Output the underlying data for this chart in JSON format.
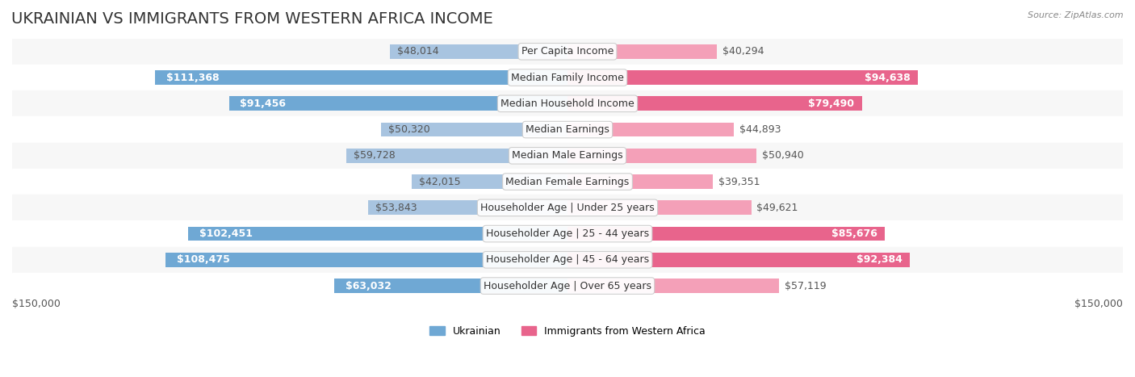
{
  "title": "UKRAINIAN VS IMMIGRANTS FROM WESTERN AFRICA INCOME",
  "source": "Source: ZipAtlas.com",
  "categories": [
    "Per Capita Income",
    "Median Family Income",
    "Median Household Income",
    "Median Earnings",
    "Median Male Earnings",
    "Median Female Earnings",
    "Householder Age | Under 25 years",
    "Householder Age | 25 - 44 years",
    "Householder Age | 45 - 64 years",
    "Householder Age | Over 65 years"
  ],
  "ukrainian_values": [
    48014,
    111368,
    91456,
    50320,
    59728,
    42015,
    53843,
    102451,
    108475,
    63032
  ],
  "western_africa_values": [
    40294,
    94638,
    79490,
    44893,
    50940,
    39351,
    49621,
    85676,
    92384,
    57119
  ],
  "ukrainian_labels": [
    "$48,014",
    "$111,368",
    "$91,456",
    "$50,320",
    "$59,728",
    "$42,015",
    "$53,843",
    "$102,451",
    "$108,475",
    "$63,032"
  ],
  "western_africa_labels": [
    "$40,294",
    "$94,638",
    "$79,490",
    "$44,893",
    "$50,940",
    "$39,351",
    "$49,621",
    "$85,676",
    "$92,384",
    "$57,119"
  ],
  "ukrainian_color": "#a8c4e0",
  "ukrainian_color_dark": "#6fa8d4",
  "western_africa_color": "#f4a0b8",
  "western_africa_color_dark": "#e8648c",
  "bar_bg_color": "#f0f0f0",
  "row_bg_color_1": "#ffffff",
  "row_bg_color_2": "#f7f7f7",
  "max_value": 150000,
  "legend_ukrainian": "Ukrainian",
  "legend_western_africa": "Immigrants from Western Africa",
  "xlabel_left": "$150,000",
  "xlabel_right": "$150,000",
  "title_fontsize": 14,
  "label_fontsize": 9,
  "category_fontsize": 9
}
